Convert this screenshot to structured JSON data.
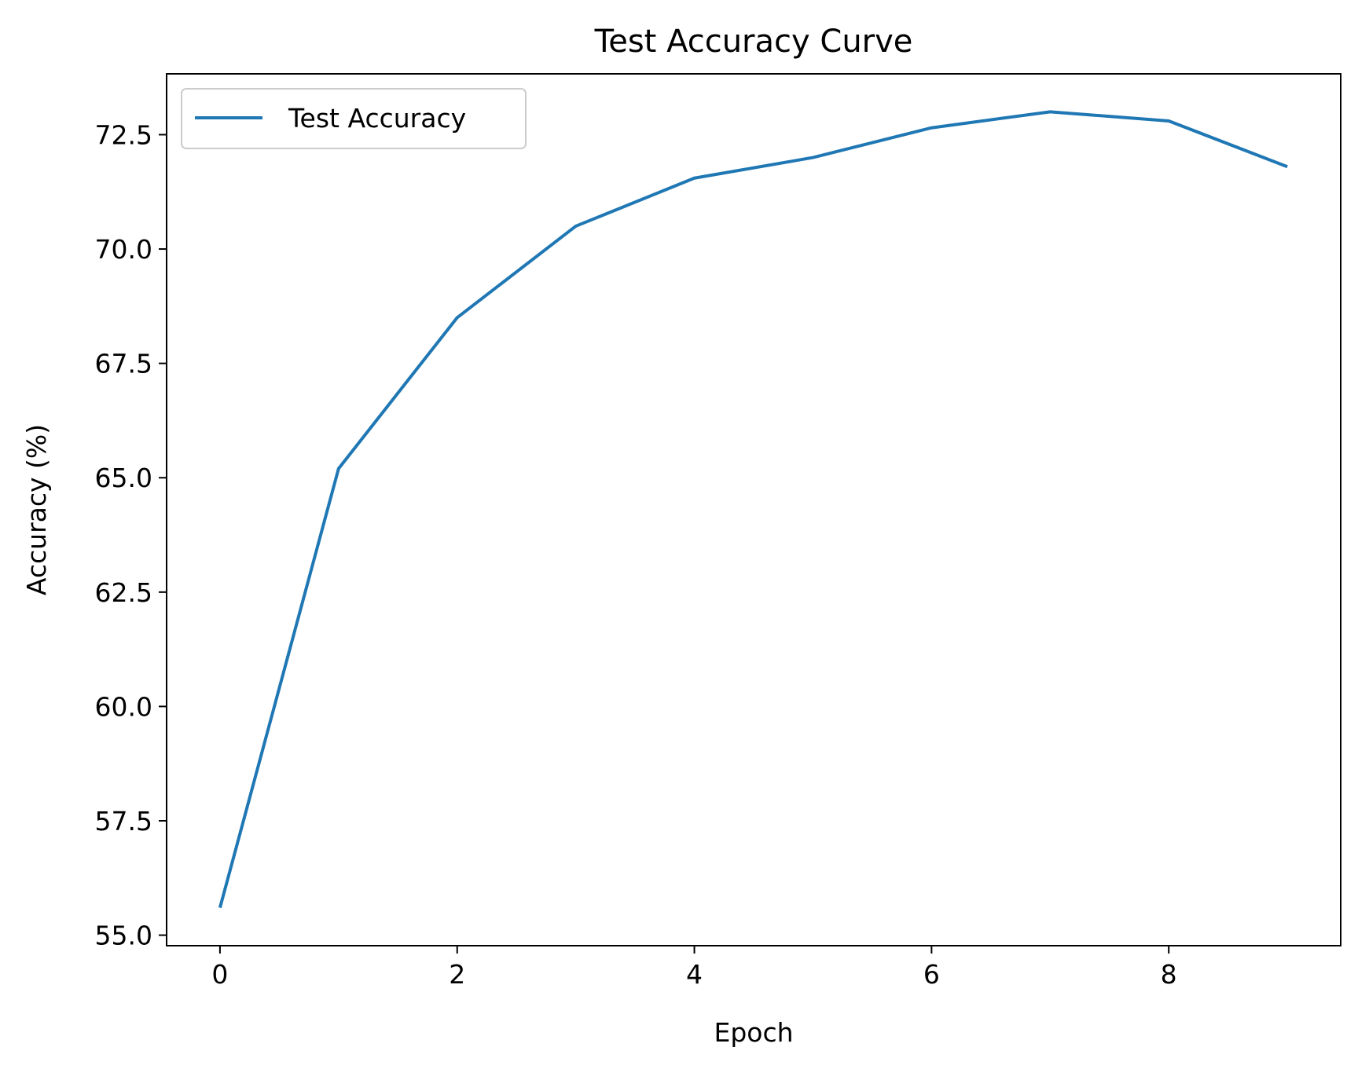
{
  "chart_data": {
    "type": "line",
    "title": "Test Accuracy Curve",
    "xlabel": "Epoch",
    "ylabel": "Accuracy (%)",
    "x": [
      0,
      1,
      2,
      3,
      4,
      5,
      6,
      7,
      8,
      9
    ],
    "series": [
      {
        "name": "Test Accuracy",
        "color": "#1f77b4",
        "values": [
          55.6,
          65.2,
          68.5,
          70.5,
          71.55,
          72.0,
          72.65,
          73.0,
          72.8,
          71.8
        ]
      }
    ],
    "xlim": [
      -0.45,
      9.45
    ],
    "ylim": [
      54.77,
      73.83
    ],
    "xticks": [
      0,
      2,
      4,
      6,
      8
    ],
    "xtick_labels": [
      "0",
      "2",
      "4",
      "6",
      "8"
    ],
    "yticks": [
      55.0,
      57.5,
      60.0,
      62.5,
      65.0,
      67.5,
      70.0,
      72.5
    ],
    "ytick_labels": [
      "55.0",
      "57.5",
      "60.0",
      "62.5",
      "65.0",
      "67.5",
      "70.0",
      "72.5"
    ],
    "grid": false,
    "legend_position": "upper-left"
  }
}
